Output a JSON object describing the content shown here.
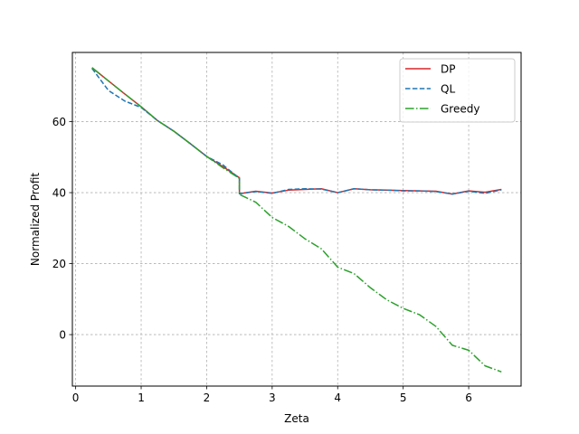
{
  "chart_data": {
    "type": "line",
    "title": "",
    "xlabel": "Zeta",
    "ylabel": "Normalized Profit",
    "xlim": [
      -0.05,
      6.8
    ],
    "ylim": [
      -14.5,
      79.5
    ],
    "xticks": [
      0,
      1,
      2,
      3,
      4,
      5,
      6
    ],
    "yticks": [
      0,
      20,
      40,
      60
    ],
    "grid": true,
    "legend_position": "top-right",
    "series": [
      {
        "name": "DP",
        "color": "#d62728",
        "style": "solid",
        "x": [
          0.25,
          0.5,
          0.75,
          1.0,
          1.25,
          1.5,
          1.75,
          2.0,
          2.25,
          2.5,
          2.5,
          2.75,
          3.0,
          3.25,
          3.5,
          3.75,
          4.0,
          4.25,
          4.5,
          4.75,
          5.0,
          5.25,
          5.5,
          5.75,
          6.0,
          6.25,
          6.5
        ],
        "y": [
          75.2,
          71.5,
          67.8,
          64.2,
          60.3,
          57.3,
          53.8,
          50.2,
          47.3,
          44.2,
          39.7,
          40.4,
          39.9,
          40.7,
          40.9,
          41.1,
          40.0,
          41.1,
          40.8,
          40.7,
          40.6,
          40.5,
          40.4,
          39.6,
          40.5,
          40.1,
          40.9
        ]
      },
      {
        "name": "QL",
        "color": "#1f77b4",
        "style": "dashed",
        "x": [
          0.25,
          0.5,
          0.75,
          1.0,
          1.25,
          1.5,
          1.75,
          2.0,
          2.25,
          2.5,
          2.5,
          2.75,
          3.0,
          3.25,
          3.5,
          3.75,
          4.0,
          4.25,
          4.5,
          4.75,
          5.0,
          5.25,
          5.5,
          5.75,
          6.0,
          6.25,
          6.5
        ],
        "y": [
          75.0,
          68.8,
          65.8,
          64.0,
          60.3,
          57.3,
          53.8,
          50.2,
          47.8,
          44.0,
          39.7,
          40.3,
          39.8,
          40.9,
          41.1,
          41.0,
          40.0,
          41.1,
          40.8,
          40.7,
          40.5,
          40.5,
          40.3,
          39.6,
          40.4,
          39.8,
          40.8
        ]
      },
      {
        "name": "Greedy",
        "color": "#2ca02c",
        "style": "dashdot",
        "x": [
          0.25,
          0.5,
          0.75,
          1.0,
          1.25,
          1.5,
          1.75,
          2.0,
          2.25,
          2.5,
          2.5,
          2.75,
          3.0,
          3.25,
          3.5,
          3.75,
          4.0,
          4.25,
          4.5,
          4.75,
          5.0,
          5.25,
          5.5,
          5.75,
          6.0,
          6.25,
          6.5
        ],
        "y": [
          75.2,
          71.5,
          67.8,
          64.2,
          60.3,
          57.3,
          53.8,
          50.2,
          47.0,
          44.0,
          39.5,
          37.3,
          33.0,
          30.5,
          27.0,
          24.2,
          19.0,
          17.2,
          13.2,
          9.8,
          7.4,
          5.6,
          2.3,
          -3.0,
          -4.4,
          -8.8,
          -10.5
        ]
      }
    ]
  }
}
